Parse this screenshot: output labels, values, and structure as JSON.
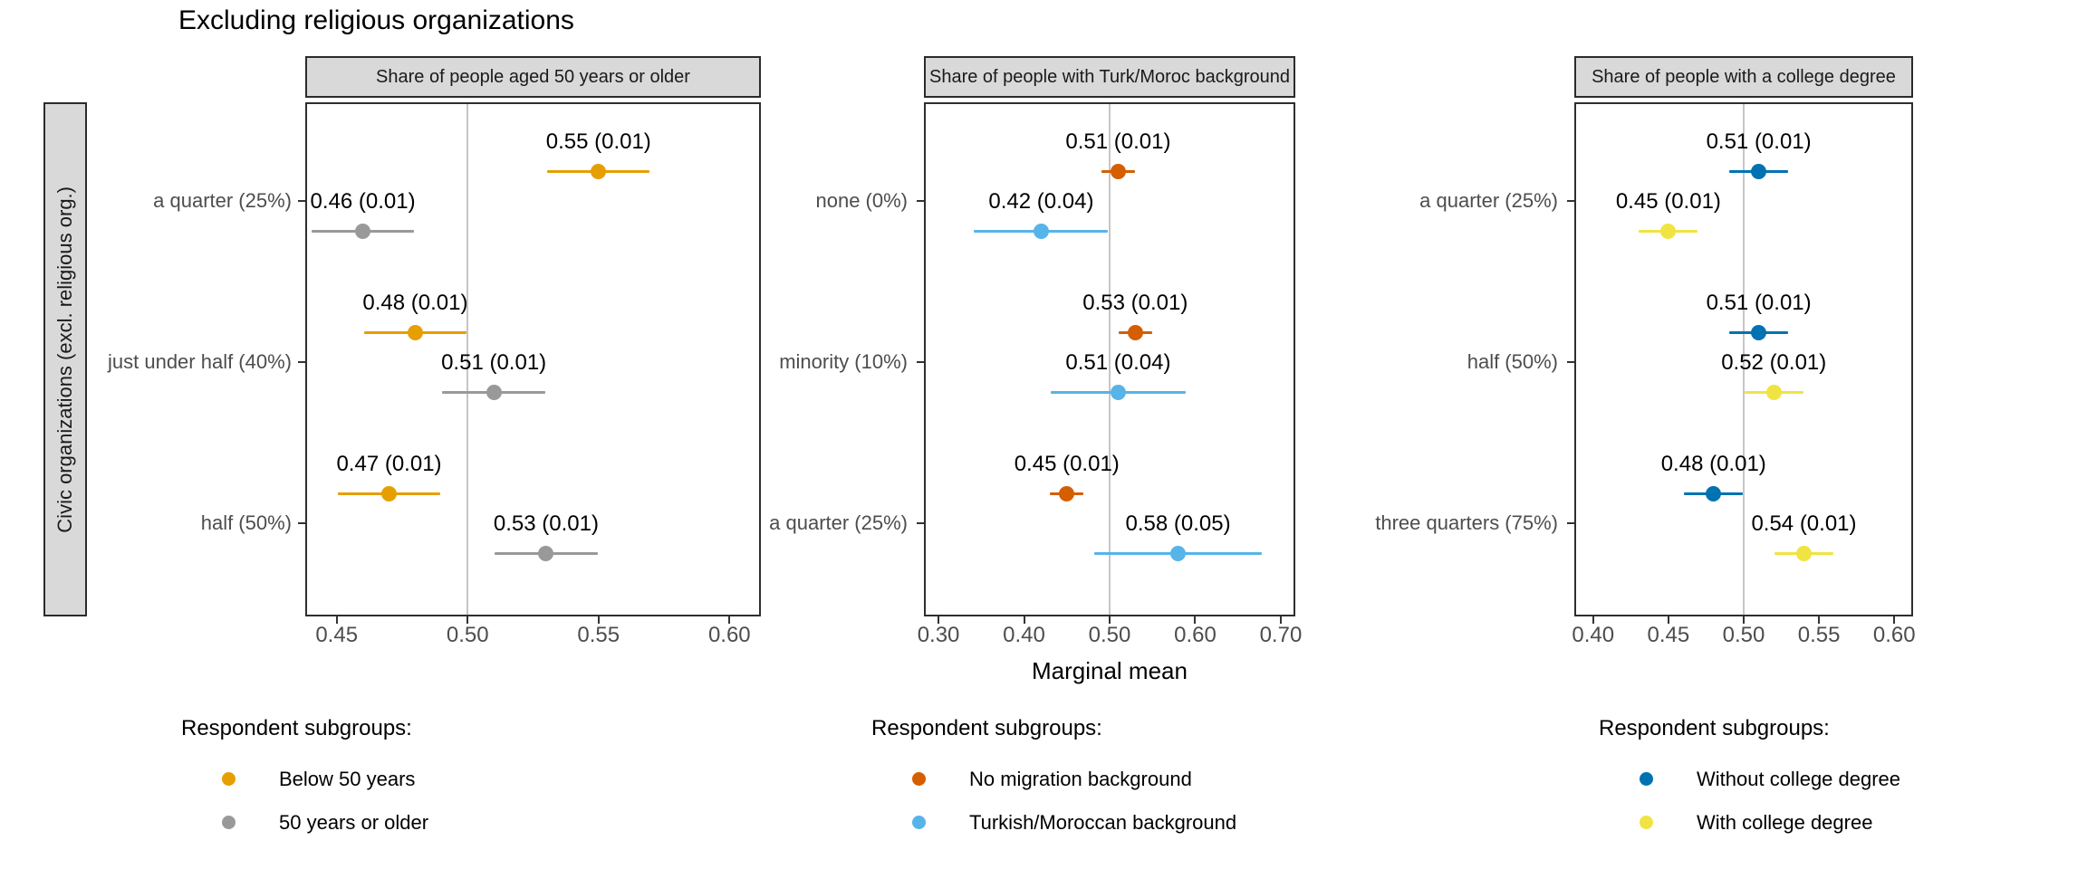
{
  "title": "Excluding religious organizations",
  "x_axis_title": "Marginal mean",
  "row_strip_label": "Civic organizations (excl. religious org.)",
  "colors": {
    "panel_border": "#2e2e2e",
    "strip_background": "#d9d9d9",
    "reference_line": "#c6c6c6",
    "axis_text": "#4d4d4d",
    "orange": "#E69F00",
    "gray": "#999999",
    "vermillion": "#D55E00",
    "sky_blue": "#56B4E9",
    "blue": "#0072B2",
    "yellow": "#F0E442"
  },
  "ci_multiplier": 1.96,
  "chart_data": [
    {
      "type": "scatter",
      "panel_title": "Share of people aged 50 years or older",
      "categories": [
        "a quarter (25%)",
        "just under half (40%)",
        "half (50%)"
      ],
      "x_ticks": [
        "0.45",
        "0.50",
        "0.55",
        "0.60"
      ],
      "xlim": [
        0.438,
        0.612
      ],
      "refline_x": 0.5,
      "legend_title": "Respondent subgroups:",
      "series": [
        {
          "name": "Below 50 years",
          "color": "#E69F00",
          "points": [
            {
              "est": 0.55,
              "se": 0.01,
              "label": "0.55 (0.01)"
            },
            {
              "est": 0.48,
              "se": 0.01,
              "label": "0.48 (0.01)"
            },
            {
              "est": 0.47,
              "se": 0.01,
              "label": "0.47 (0.01)"
            }
          ]
        },
        {
          "name": "50 years or older",
          "color": "#999999",
          "points": [
            {
              "est": 0.46,
              "se": 0.01,
              "label": "0.46 (0.01)"
            },
            {
              "est": 0.51,
              "se": 0.01,
              "label": "0.51 (0.01)"
            },
            {
              "est": 0.53,
              "se": 0.01,
              "label": "0.53 (0.01)"
            }
          ]
        }
      ]
    },
    {
      "type": "scatter",
      "panel_title": "Share of people with Turk/Moroc background",
      "categories": [
        "none (0%)",
        "minority (10%)",
        "a quarter (25%)"
      ],
      "x_ticks": [
        "0.30",
        "0.40",
        "0.50",
        "0.60",
        "0.70"
      ],
      "xlim": [
        0.283,
        0.717
      ],
      "refline_x": 0.5,
      "legend_title": "Respondent subgroups:",
      "series": [
        {
          "name": "No migration background",
          "color": "#D55E00",
          "points": [
            {
              "est": 0.51,
              "se": 0.01,
              "label": "0.51 (0.01)"
            },
            {
              "est": 0.53,
              "se": 0.01,
              "label": "0.53 (0.01)"
            },
            {
              "est": 0.45,
              "se": 0.01,
              "label": "0.45 (0.01)"
            }
          ]
        },
        {
          "name": "Turkish/Moroccan background",
          "color": "#56B4E9",
          "points": [
            {
              "est": 0.42,
              "se": 0.04,
              "label": "0.42 (0.04)"
            },
            {
              "est": 0.51,
              "se": 0.04,
              "label": "0.51 (0.04)"
            },
            {
              "est": 0.58,
              "se": 0.05,
              "label": "0.58 (0.05)"
            }
          ]
        }
      ]
    },
    {
      "type": "scatter",
      "panel_title": "Share of people with a college degree",
      "categories": [
        "a quarter (25%)",
        "half (50%)",
        "three quarters (75%)"
      ],
      "x_ticks": [
        "0.40",
        "0.45",
        "0.50",
        "0.55",
        "0.60"
      ],
      "xlim": [
        0.3875,
        0.6125
      ],
      "refline_x": 0.5,
      "legend_title": "Respondent subgroups:",
      "series": [
        {
          "name": "Without college degree",
          "color": "#0072B2",
          "points": [
            {
              "est": 0.51,
              "se": 0.01,
              "label": "0.51 (0.01)"
            },
            {
              "est": 0.51,
              "se": 0.01,
              "label": "0.51 (0.01)"
            },
            {
              "est": 0.48,
              "se": 0.01,
              "label": "0.48 (0.01)"
            }
          ]
        },
        {
          "name": "With college degree",
          "color": "#F0E442",
          "points": [
            {
              "est": 0.45,
              "se": 0.01,
              "label": "0.45 (0.01)"
            },
            {
              "est": 0.52,
              "se": 0.01,
              "label": "0.52 (0.01)"
            },
            {
              "est": 0.54,
              "se": 0.01,
              "label": "0.54 (0.01)"
            }
          ]
        }
      ]
    }
  ]
}
